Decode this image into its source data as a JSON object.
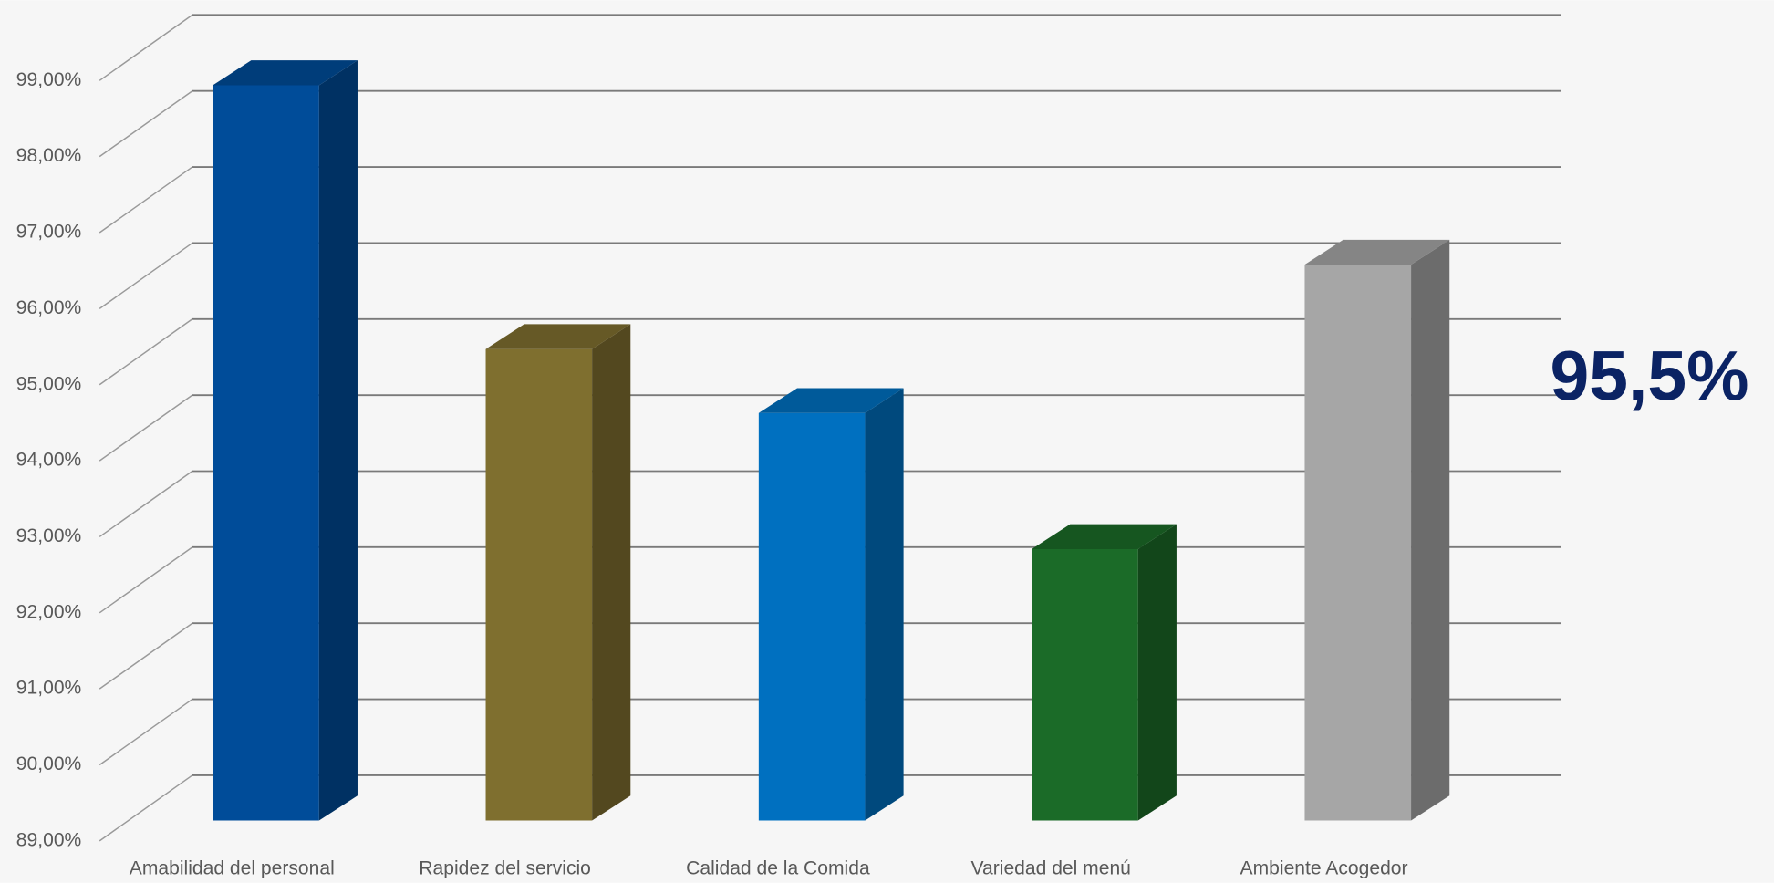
{
  "chart_data": {
    "type": "bar3d",
    "categories": [
      "Amabilidad del personal",
      "Rapidez del servicio",
      "Calidad de la Comida",
      "Variedad del menú",
      "Ambiente Acogedor"
    ],
    "values": [
      98.7,
      95.23,
      94.39,
      92.6,
      96.34
    ],
    "colors": [
      "#004c99",
      "#7f6f2f",
      "#0070c0",
      "#1b6b28",
      "#a6a6a6"
    ],
    "ylim": [
      89,
      99
    ],
    "yticks": [
      {
        "value": 89,
        "label": "89,00%"
      },
      {
        "value": 90,
        "label": "90,00%"
      },
      {
        "value": 91,
        "label": "91,00%"
      },
      {
        "value": 92,
        "label": "92,00%"
      },
      {
        "value": 93,
        "label": "93,00%"
      },
      {
        "value": 94,
        "label": "94,00%"
      },
      {
        "value": 95,
        "label": "95,00%"
      },
      {
        "value": 96,
        "label": "96,00%"
      },
      {
        "value": 97,
        "label": "97,00%"
      },
      {
        "value": 98,
        "label": "98,00%"
      },
      {
        "value": 99,
        "label": "99,00%"
      }
    ],
    "grid": true,
    "annotation": "95,5%"
  }
}
